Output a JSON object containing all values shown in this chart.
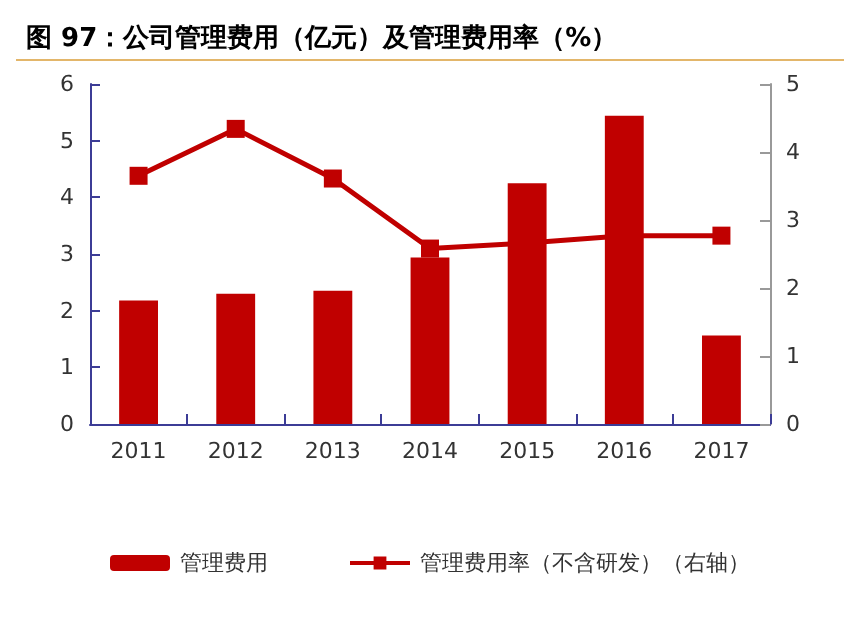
{
  "chart_data": {
    "type": "bar",
    "title": "图 97：公司管理费用（亿元）及管理费用率（%）",
    "categories": [
      "2011",
      "2012",
      "2013",
      "2014",
      "2015",
      "2016",
      "2017"
    ],
    "series": [
      {
        "name": "管理费用",
        "color": "#c00000",
        "values": [
          2.18,
          2.3,
          2.35,
          2.94,
          4.25,
          5.44,
          1.56
        ]
      },
      {
        "name": "管理费用率（不含研发）（右轴）",
        "type": "line",
        "axis": "y2",
        "color": "#c00000",
        "marker": "square",
        "values": [
          3.65,
          4.34,
          3.61,
          2.58,
          2.66,
          2.77,
          2.77
        ]
      }
    ],
    "ylim": [
      0,
      6
    ],
    "yticks": [
      0,
      1,
      2,
      3,
      4,
      5,
      6
    ],
    "y2lim": [
      0,
      5
    ],
    "y2ticks": [
      0,
      1,
      2,
      3,
      4,
      5
    ],
    "grid": false,
    "legend": "bottom"
  }
}
